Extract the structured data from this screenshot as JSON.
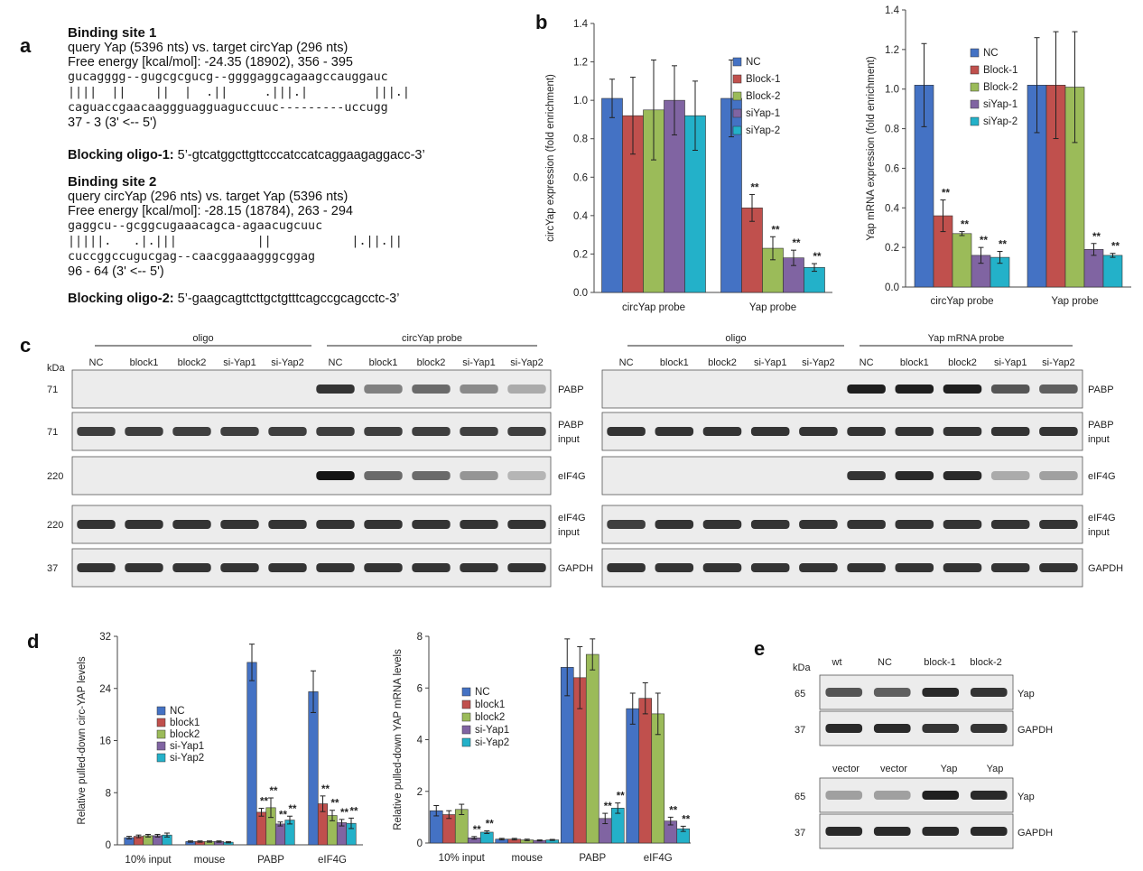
{
  "panel_a": {
    "letter": "a",
    "site1": {
      "title": "Binding site 1",
      "query": "query Yap (5396 nts) vs. target circYap (296 nts)",
      "energy": "Free energy [kcal/mol]: -24.35 (18902), 356 - 395",
      "seq1": "gucagggg--gugcgcgucg--ggggaggcagaagccauggauc",
      "pairs": "||||  ||    ||  |  .||     .|||.|         |||.|",
      "seq2": "caguaccgaacaaggguagguaguccuuc---------uccugg",
      "pos": "37 - 3 (3' <-- 5')"
    },
    "oligo1": {
      "label": "Blocking oligo-1:",
      "seq": " 5’-gtcatggcttgttcccatccatcaggaagaggacc-3’"
    },
    "site2": {
      "title": "Binding site 2",
      "query": "query circYap (296 nts) vs. target Yap (5396 nts)",
      "energy": "Free energy [kcal/mol]: -28.15 (18784), 263 - 294",
      "seq1": "gaggcu--gcggcugaaacagca-agaacugcuuc",
      "pairs": "|||||.   .|.|||           ||           |.||.||",
      "seq2": "cuccggccugucgag--caacggaaagggcggag",
      "pos": "96 - 64 (3' <-- 5')"
    },
    "oligo2": {
      "label": "Blocking oligo-2:",
      "seq": " 5’-gaagcagttcttgctgtttcagccgcagcctc-3’"
    }
  },
  "panel_b": {
    "letter": "b",
    "chart_data": [
      {
        "type": "bar",
        "ylabel": "circYap expression (fold enrichment)",
        "ylim": [
          0,
          1.4
        ],
        "yticks": [
          "0.0",
          "0.2",
          "0.4",
          "0.6",
          "0.8",
          "1.0",
          "1.2",
          "1.4"
        ],
        "categories": [
          "circYap probe",
          "Yap probe"
        ],
        "series": [
          {
            "name": "NC",
            "color": "#4472C4",
            "values": [
              1.01,
              1.01
            ],
            "err": [
              0.1,
              0.2
            ],
            "sig": [
              "",
              ""
            ]
          },
          {
            "name": "Block-1",
            "color": "#C0504D",
            "values": [
              0.92,
              0.44
            ],
            "err": [
              0.2,
              0.07
            ],
            "sig": [
              "",
              "**"
            ]
          },
          {
            "name": "Block-2",
            "color": "#9BBB59",
            "values": [
              0.95,
              0.23
            ],
            "err": [
              0.26,
              0.06
            ],
            "sig": [
              "",
              "**"
            ]
          },
          {
            "name": "siYap-1",
            "color": "#8064A2",
            "values": [
              1.0,
              0.18
            ],
            "err": [
              0.18,
              0.04
            ],
            "sig": [
              "",
              "**"
            ]
          },
          {
            "name": "siYap-2",
            "color": "#23B1C9",
            "values": [
              0.92,
              0.13
            ],
            "err": [
              0.18,
              0.02
            ],
            "sig": [
              "",
              "**"
            ]
          }
        ],
        "legend": "top-right"
      },
      {
        "type": "bar",
        "ylabel": "Yap mRNA expression (fold enrichment)",
        "ylim": [
          0,
          1.4
        ],
        "yticks": [
          "0.0",
          "0.2",
          "0.4",
          "0.6",
          "0.8",
          "1.0",
          "1.2",
          "1.4"
        ],
        "categories": [
          "circYap probe",
          "Yap probe"
        ],
        "series": [
          {
            "name": "NC",
            "color": "#4472C4",
            "values": [
              1.02,
              1.02
            ],
            "err": [
              0.21,
              0.24
            ],
            "sig": [
              "",
              ""
            ]
          },
          {
            "name": "Block-1",
            "color": "#C0504D",
            "values": [
              0.36,
              1.02
            ],
            "err": [
              0.08,
              0.27
            ],
            "sig": [
              "**",
              ""
            ]
          },
          {
            "name": "Block-2",
            "color": "#9BBB59",
            "values": [
              0.27,
              1.01
            ],
            "err": [
              0.01,
              0.28
            ],
            "sig": [
              "**",
              ""
            ]
          },
          {
            "name": "siYap-1",
            "color": "#8064A2",
            "values": [
              0.16,
              0.19
            ],
            "err": [
              0.04,
              0.03
            ],
            "sig": [
              "**",
              "**"
            ]
          },
          {
            "name": "siYap-2",
            "color": "#23B1C9",
            "values": [
              0.15,
              0.16
            ],
            "err": [
              0.03,
              0.01
            ],
            "sig": [
              "**",
              "**"
            ]
          }
        ],
        "legend": "top-left"
      }
    ]
  },
  "panel_c": {
    "letter": "c",
    "kda": "kDa",
    "left": {
      "group1": "oligo",
      "group2": "circYap probe",
      "lanes": [
        "NC",
        "block1",
        "block2",
        "si-Yap1",
        "si-Yap2",
        "NC",
        "block1",
        "block2",
        "si-Yap1",
        "si-Yap2"
      ]
    },
    "right": {
      "group1": "oligo",
      "group2": "Yap mRNA probe",
      "lanes": [
        "NC",
        "block1",
        "block2",
        "si-Yap1",
        "si-Yap2",
        "NC",
        "block1",
        "block2",
        "si-Yap1",
        "si-Yap2"
      ]
    },
    "rows": [
      {
        "kda": "71",
        "label": "PABP",
        "label2": ""
      },
      {
        "kda": "71",
        "label": "PABP",
        "label2": "input"
      },
      {
        "kda": "220",
        "label": "eIF4G",
        "label2": ""
      },
      {
        "kda": "220",
        "label": "eIF4G",
        "label2": "input"
      },
      {
        "kda": "37",
        "label": "GAPDH",
        "label2": ""
      }
    ]
  },
  "panel_d": {
    "letter": "d",
    "chart_data": [
      {
        "type": "bar",
        "ylabel": "Relative pulled-down circ-YAP levels",
        "ylim": [
          0,
          32
        ],
        "yticks": [
          "0",
          "8",
          "16",
          "24",
          "32"
        ],
        "categories": [
          "10% input",
          "mouse",
          "PABP",
          "eIF4G"
        ],
        "series": [
          {
            "name": "NC",
            "color": "#4472C4",
            "values": [
              1.1,
              0.5,
              28,
              23.5
            ],
            "err": [
              0.2,
              0.1,
              2.8,
              3.2
            ],
            "sig": [
              "",
              "",
              "",
              ""
            ]
          },
          {
            "name": "block1",
            "color": "#C0504D",
            "values": [
              1.3,
              0.5,
              5,
              6.3
            ],
            "err": [
              0.2,
              0.1,
              0.6,
              1.2
            ],
            "sig": [
              "",
              "",
              "**",
              "**"
            ]
          },
          {
            "name": "block2",
            "color": "#9BBB59",
            "values": [
              1.4,
              0.5,
              5.7,
              4.5
            ],
            "err": [
              0.2,
              0.1,
              1.5,
              0.8
            ],
            "sig": [
              "",
              "",
              "**",
              "**"
            ]
          },
          {
            "name": "si-Yap1",
            "color": "#8064A2",
            "values": [
              1.4,
              0.5,
              3.2,
              3.4
            ],
            "err": [
              0.2,
              0.1,
              0.3,
              0.5
            ],
            "sig": [
              "",
              "",
              "**",
              "**"
            ]
          },
          {
            "name": "si-Yap2",
            "color": "#23B1C9",
            "values": [
              1.5,
              0.4,
              3.8,
              3.3
            ],
            "err": [
              0.3,
              0.1,
              0.6,
              0.8
            ],
            "sig": [
              "",
              "",
              "**",
              "**"
            ]
          }
        ],
        "legend": "left"
      },
      {
        "type": "bar",
        "ylabel": "Relative pulled-down YAP mRNA levels",
        "ylim": [
          0,
          8
        ],
        "yticks": [
          "0",
          "2",
          "4",
          "6",
          "8"
        ],
        "categories": [
          "10% input",
          "mouse",
          "PABP",
          "eIF4G"
        ],
        "series": [
          {
            "name": "NC",
            "color": "#4472C4",
            "values": [
              1.25,
              0.15,
              6.8,
              5.2
            ],
            "err": [
              0.2,
              0.03,
              1.1,
              0.6
            ],
            "sig": [
              "",
              "",
              "",
              ""
            ]
          },
          {
            "name": "block1",
            "color": "#C0504D",
            "values": [
              1.1,
              0.15,
              6.4,
              5.6
            ],
            "err": [
              0.15,
              0.03,
              1.2,
              0.6
            ],
            "sig": [
              "",
              "",
              "",
              ""
            ]
          },
          {
            "name": "block2",
            "color": "#9BBB59",
            "values": [
              1.3,
              0.12,
              7.3,
              5.0
            ],
            "err": [
              0.2,
              0.03,
              0.6,
              0.8
            ],
            "sig": [
              "",
              "",
              "",
              ""
            ]
          },
          {
            "name": "si-Yap1",
            "color": "#8064A2",
            "values": [
              0.2,
              0.1,
              0.95,
              0.85
            ],
            "err": [
              0.05,
              0.02,
              0.2,
              0.15
            ],
            "sig": [
              "**",
              "",
              "**",
              "**"
            ]
          },
          {
            "name": "si-Yap2",
            "color": "#23B1C9",
            "values": [
              0.42,
              0.12,
              1.35,
              0.55
            ],
            "err": [
              0.05,
              0.02,
              0.2,
              0.1
            ],
            "sig": [
              "**",
              "",
              "**",
              "**"
            ]
          }
        ],
        "legend": "left"
      }
    ]
  },
  "panel_e": {
    "letter": "e",
    "kda": "kDa",
    "top_lanes": [
      "wt",
      "NC",
      "block-1",
      "block-2"
    ],
    "bottom_lanes": [
      "vector",
      "vector",
      "Yap",
      "Yap"
    ],
    "top_rows": [
      {
        "kda": "65",
        "label": "Yap"
      },
      {
        "kda": "37",
        "label": "GAPDH"
      }
    ],
    "bottom_rows": [
      {
        "kda": "65",
        "label": "Yap"
      },
      {
        "kda": "37",
        "label": "GAPDH"
      }
    ]
  }
}
